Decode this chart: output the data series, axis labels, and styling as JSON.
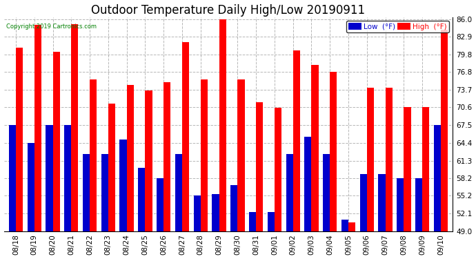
{
  "title": "Outdoor Temperature Daily High/Low 20190911",
  "copyright": "Copyright 2019 Cartronics.com",
  "dates": [
    "08/18",
    "08/19",
    "08/20",
    "08/21",
    "08/22",
    "08/23",
    "08/24",
    "08/25",
    "08/26",
    "08/27",
    "08/28",
    "08/29",
    "08/30",
    "08/31",
    "09/01",
    "09/02",
    "09/03",
    "09/04",
    "09/05",
    "09/06",
    "09/07",
    "09/08",
    "09/09",
    "09/10"
  ],
  "highs": [
    81.0,
    85.0,
    80.3,
    85.1,
    75.5,
    71.2,
    74.5,
    73.5,
    75.0,
    82.0,
    75.5,
    86.0,
    75.5,
    71.5,
    70.5,
    80.5,
    78.0,
    76.8,
    50.5,
    74.0,
    74.0,
    70.6,
    70.6,
    84.2
  ],
  "lows": [
    67.5,
    64.4,
    67.5,
    67.5,
    62.5,
    62.5,
    65.0,
    60.0,
    58.2,
    62.5,
    55.2,
    55.5,
    57.0,
    52.3,
    52.3,
    62.5,
    65.5,
    62.5,
    51.0,
    59.0,
    59.0,
    58.2,
    58.2,
    67.5
  ],
  "high_color": "#ff0000",
  "low_color": "#0000cc",
  "ylim_min": 49.0,
  "ylim_max": 86.0,
  "yticks": [
    49.0,
    52.1,
    55.2,
    58.2,
    61.3,
    64.4,
    67.5,
    70.6,
    73.7,
    76.8,
    79.8,
    82.9,
    86.0
  ],
  "background_color": "#ffffff",
  "grid_color": "#888888",
  "title_fontsize": 12,
  "tick_fontsize": 7.5,
  "bar_width": 0.38,
  "legend_low_label": "Low  (°F)",
  "legend_high_label": "High  (°F)"
}
